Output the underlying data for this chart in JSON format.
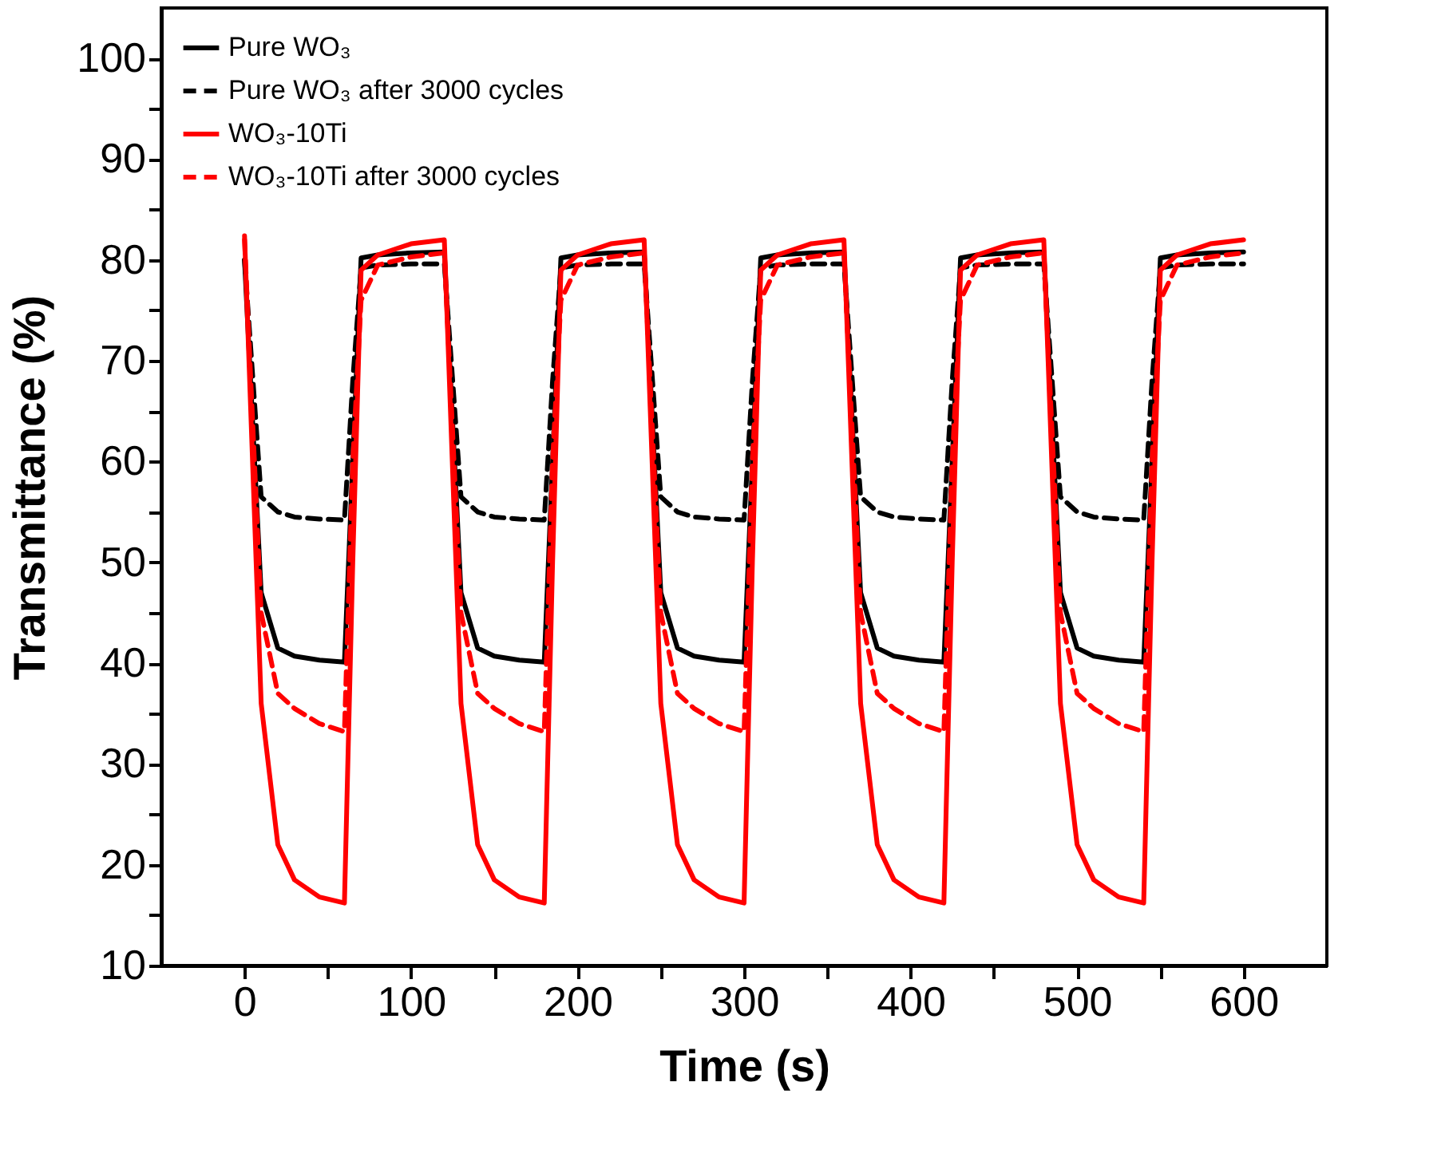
{
  "chart_data": {
    "type": "line",
    "xlabel": "Time (s)",
    "ylabel": "Transmittance (%)",
    "x": [
      0,
      10,
      20,
      30,
      45,
      60,
      65,
      70,
      80,
      100,
      120,
      130,
      140,
      150,
      165,
      180,
      185,
      190,
      200,
      220,
      240,
      250,
      260,
      270,
      285,
      300,
      305,
      310,
      320,
      340,
      360,
      370,
      380,
      390,
      405,
      420,
      425,
      430,
      440,
      460,
      480,
      490,
      500,
      510,
      525,
      540,
      545,
      550,
      560,
      580,
      600
    ],
    "series": [
      {
        "name": "Pure WO₃",
        "color": "#000000",
        "line_style": "solid",
        "values": [
          80,
          47,
          41.5,
          40.7,
          40.3,
          40.1,
          60,
          80.2,
          80.5,
          80.7,
          80.8,
          47,
          41.5,
          40.7,
          40.3,
          40.1,
          60,
          80.2,
          80.5,
          80.7,
          80.8,
          47,
          41.5,
          40.7,
          40.3,
          40.1,
          60,
          80.2,
          80.5,
          80.7,
          80.8,
          47,
          41.5,
          40.7,
          40.3,
          40.1,
          60,
          80.2,
          80.5,
          80.7,
          80.8,
          47,
          41.5,
          40.7,
          40.3,
          40.1,
          60,
          80.2,
          80.5,
          80.7,
          80.8
        ]
      },
      {
        "name": "Pure WO₃ after 3000 cycles",
        "color": "#000000",
        "line_style": "dashed",
        "values": [
          80,
          56.5,
          55,
          54.5,
          54.3,
          54.2,
          68,
          79.2,
          79.5,
          79.6,
          79.6,
          56.5,
          55,
          54.5,
          54.3,
          54.2,
          68,
          79.2,
          79.5,
          79.6,
          79.6,
          56.5,
          55,
          54.5,
          54.3,
          54.2,
          68,
          79.2,
          79.5,
          79.6,
          79.6,
          56.5,
          55,
          54.5,
          54.3,
          54.2,
          68,
          79.2,
          79.5,
          79.6,
          79.6,
          56.5,
          55,
          54.5,
          54.3,
          54.2,
          68,
          79.2,
          79.5,
          79.6,
          79.6
        ]
      },
      {
        "name": "WO₃-10Ti",
        "color": "#ff0000",
        "line_style": "solid",
        "values": [
          82.4,
          36,
          22,
          18.5,
          16.8,
          16.2,
          50,
          79,
          80.5,
          81.6,
          82,
          36,
          22,
          18.5,
          16.8,
          16.2,
          50,
          79,
          80.5,
          81.6,
          82,
          36,
          22,
          18.5,
          16.8,
          16.2,
          50,
          79,
          80.5,
          81.6,
          82,
          36,
          22,
          18.5,
          16.8,
          16.2,
          50,
          79,
          80.5,
          81.6,
          82,
          36,
          22,
          18.5,
          16.8,
          16.2,
          50,
          79,
          80.5,
          81.6,
          82
        ]
      },
      {
        "name": "WO₃-10Ti after 3000 cycles",
        "color": "#ff0000",
        "line_style": "dashed",
        "values": [
          82,
          45,
          37,
          35.5,
          34,
          33.2,
          60,
          76,
          79.5,
          80.3,
          80.7,
          45,
          37,
          35.5,
          34,
          33.2,
          60,
          76,
          79.5,
          80.3,
          80.7,
          45,
          37,
          35.5,
          34,
          33.2,
          60,
          76,
          79.5,
          80.3,
          80.7,
          45,
          37,
          35.5,
          34,
          33.2,
          60,
          76,
          79.5,
          80.3,
          80.7,
          45,
          37,
          35.5,
          34,
          33.2,
          60,
          76,
          79.5,
          80.3,
          80.7
        ]
      }
    ],
    "xlim": [
      -50,
      650
    ],
    "ylim": [
      10,
      105
    ],
    "xticks": [
      0,
      {
        "value": 50,
        "label": null
      },
      100,
      {
        "value": 150,
        "label": null
      },
      200,
      {
        "value": 250,
        "label": null
      },
      300,
      {
        "value": 350,
        "label": null
      },
      400,
      {
        "value": 450,
        "label": null
      },
      500,
      {
        "value": 550,
        "label": null
      },
      600
    ],
    "yticks": [
      10,
      {
        "value": 15,
        "label": null
      },
      20,
      {
        "value": 25,
        "label": null
      },
      30,
      {
        "value": 35,
        "label": null
      },
      40,
      {
        "value": 45,
        "label": null
      },
      50,
      {
        "value": 55,
        "label": null
      },
      60,
      {
        "value": 65,
        "label": null
      },
      70,
      {
        "value": 75,
        "label": null
      },
      80,
      {
        "value": 85,
        "label": null
      },
      90,
      {
        "value": 95,
        "label": null
      },
      100
    ],
    "legend": "top left",
    "grid": false
  }
}
